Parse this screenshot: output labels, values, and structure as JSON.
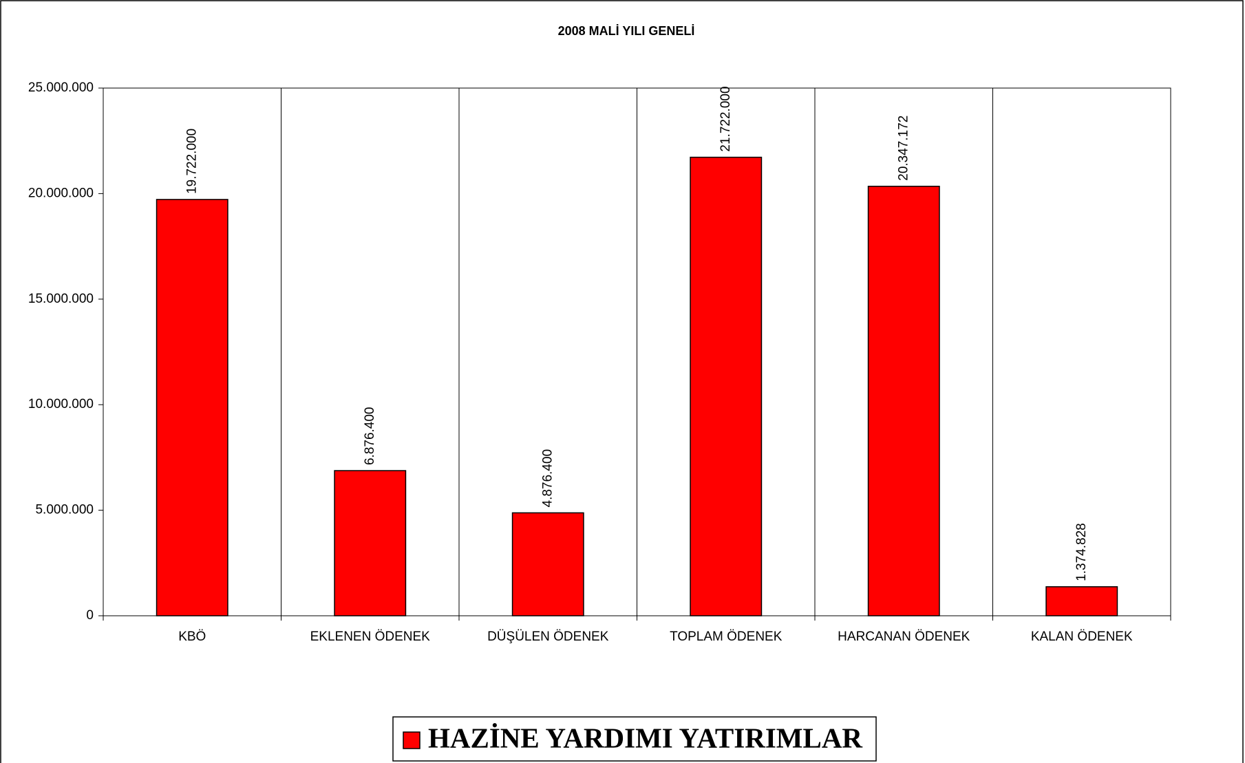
{
  "chart_data": {
    "type": "bar",
    "title": "2008 MALİ YILI GENELİ",
    "categories": [
      "KBÖ",
      "EKLENEN ÖDENEK",
      "DÜŞÜLEN ÖDENEK",
      "TOPLAM ÖDENEK",
      "HARCANAN ÖDENEK",
      "KALAN ÖDENEK"
    ],
    "series": [
      {
        "name": "HAZİNE YARDIMI YATIRIMLAR",
        "color": "#ff0000",
        "values": [
          19722000,
          6876400,
          4876400,
          21722000,
          20347172,
          1374828
        ],
        "value_labels": [
          "19.722.000",
          "6.876.400",
          "4.876.400",
          "21.722.000",
          "20.347.172",
          "1.374.828"
        ]
      }
    ],
    "ylim": [
      0,
      25000000
    ],
    "yticks": [
      0,
      {
        "value": 5000000,
        "label": "5.000.000"
      },
      {
        "value": 10000000,
        "label": "10.000.000"
      },
      {
        "value": 15000000,
        "label": "15.000.000"
      },
      {
        "value": 20000000,
        "label": "20.000.000"
      },
      {
        "value": 25000000,
        "label": "25.000.000"
      }
    ],
    "legend": "bottom"
  }
}
